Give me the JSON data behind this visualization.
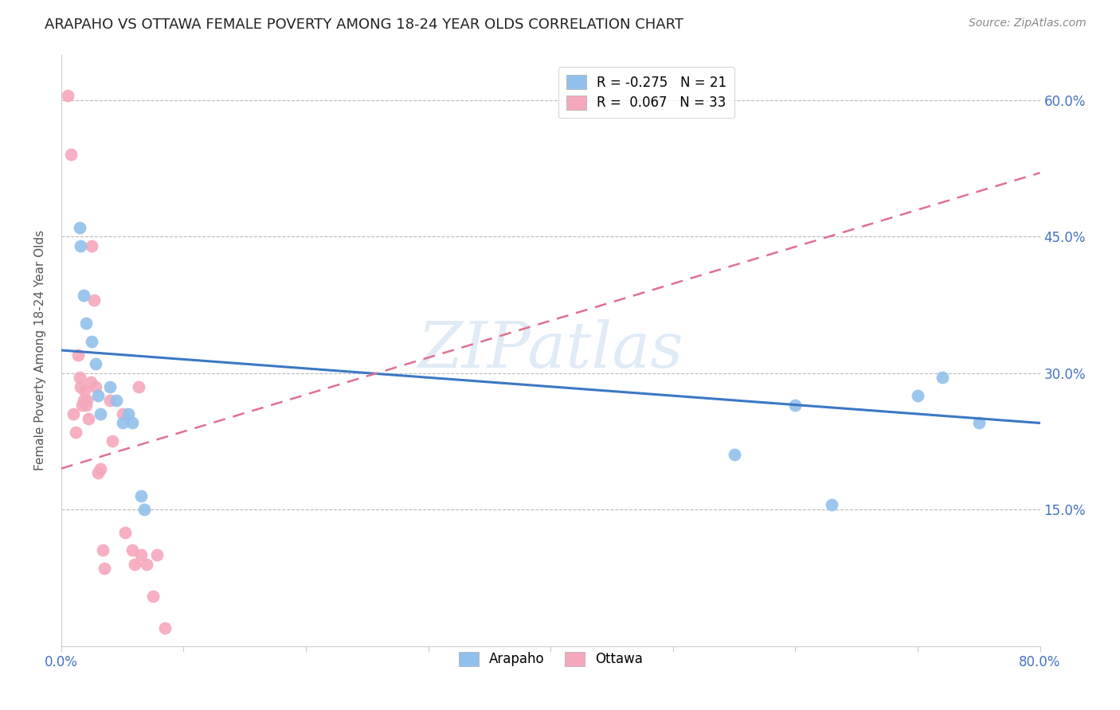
{
  "title": "ARAPAHO VS OTTAWA FEMALE POVERTY AMONG 18-24 YEAR OLDS CORRELATION CHART",
  "source": "Source: ZipAtlas.com",
  "ylabel": "Female Poverty Among 18-24 Year Olds",
  "xlim": [
    0.0,
    0.8
  ],
  "ylim": [
    0.0,
    0.65
  ],
  "grid_yticks": [
    0.15,
    0.3,
    0.45,
    0.6
  ],
  "arapaho_color": "#92C0EC",
  "ottawa_color": "#F5A8BC",
  "arapaho_line_color": "#3B78C4",
  "ottawa_line_color": "#E07090",
  "legend_arapaho_R": "-0.275",
  "legend_arapaho_N": "21",
  "legend_ottawa_R": "0.067",
  "legend_ottawa_N": "33",
  "watermark": "ZIPatlas",
  "arapaho_line_x0": 0.0,
  "arapaho_line_y0": 0.325,
  "arapaho_line_x1": 0.8,
  "arapaho_line_y1": 0.245,
  "ottawa_line_x0": 0.0,
  "ottawa_line_y0": 0.195,
  "ottawa_line_x1": 0.8,
  "ottawa_line_y1": 0.52,
  "arapaho_x": [
    0.015,
    0.016,
    0.018,
    0.02,
    0.025,
    0.028,
    0.03,
    0.032,
    0.04,
    0.045,
    0.05,
    0.055,
    0.058,
    0.065,
    0.068,
    0.55,
    0.6,
    0.63,
    0.7,
    0.72,
    0.75
  ],
  "arapaho_y": [
    0.46,
    0.44,
    0.385,
    0.355,
    0.335,
    0.31,
    0.275,
    0.255,
    0.285,
    0.27,
    0.245,
    0.255,
    0.245,
    0.165,
    0.15,
    0.21,
    0.265,
    0.155,
    0.275,
    0.295,
    0.245
  ],
  "ottawa_x": [
    0.005,
    0.008,
    0.01,
    0.012,
    0.014,
    0.015,
    0.016,
    0.017,
    0.018,
    0.019,
    0.02,
    0.021,
    0.022,
    0.024,
    0.025,
    0.027,
    0.028,
    0.03,
    0.032,
    0.034,
    0.035,
    0.04,
    0.042,
    0.05,
    0.052,
    0.058,
    0.06,
    0.063,
    0.065,
    0.07,
    0.075,
    0.078,
    0.085
  ],
  "ottawa_y": [
    0.605,
    0.54,
    0.255,
    0.235,
    0.32,
    0.295,
    0.285,
    0.265,
    0.27,
    0.28,
    0.265,
    0.27,
    0.25,
    0.29,
    0.44,
    0.38,
    0.285,
    0.19,
    0.195,
    0.105,
    0.085,
    0.27,
    0.225,
    0.255,
    0.125,
    0.105,
    0.09,
    0.285,
    0.1,
    0.09,
    0.055,
    0.1,
    0.02
  ]
}
